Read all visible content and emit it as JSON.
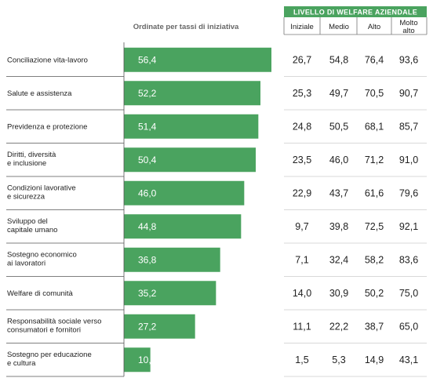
{
  "chart_data": {
    "type": "bar",
    "subtitle": "Ordinate per tassi di iniziativa",
    "group_title": "LIVELLO DI WELFARE AZIENDALE",
    "columns": [
      "Iniziale",
      "Medio",
      "Alto",
      "Molto alto"
    ],
    "categories": [
      [
        "Conciliazione vita-lavoro"
      ],
      [
        "Salute e assistenza"
      ],
      [
        "Previdenza e protezione"
      ],
      [
        "Diritti, diversità",
        "e inclusione"
      ],
      [
        "Condizioni lavorative",
        "e sicurezza"
      ],
      [
        "Sviluppo del",
        "capitale umano"
      ],
      [
        "Sostegno economico",
        "ai lavoratori"
      ],
      [
        "Welfare di comunità"
      ],
      [
        "Responsabilità sociale verso",
        "consumatori e fornitori"
      ],
      [
        "Sostegno per educazione",
        "e cultura"
      ]
    ],
    "values": [
      56.4,
      52.2,
      51.4,
      50.4,
      46.0,
      44.8,
      36.8,
      35.2,
      27.2,
      10.1
    ],
    "value_labels": [
      "56,4",
      "52,2",
      "51,4",
      "50,4",
      "46,0",
      "44,8",
      "36,8",
      "35,2",
      "27,2",
      "10,1"
    ],
    "table": [
      [
        "26,7",
        "54,8",
        "76,4",
        "93,6"
      ],
      [
        "25,3",
        "49,7",
        "70,5",
        "90,7"
      ],
      [
        "24,8",
        "50,5",
        "68,1",
        "85,7"
      ],
      [
        "23,5",
        "46,0",
        "71,2",
        "91,0"
      ],
      [
        "22,9",
        "43,7",
        "61,6",
        "79,6"
      ],
      [
        "9,7",
        "39,8",
        "72,5",
        "92,1"
      ],
      [
        "7,1",
        "32,4",
        "58,2",
        "83,6"
      ],
      [
        "14,0",
        "30,9",
        "50,2",
        "75,0"
      ],
      [
        "11,1",
        "22,2",
        "38,7",
        "65,0"
      ],
      [
        "1,5",
        "5,3",
        "14,9",
        "43,1"
      ]
    ],
    "xlim": [
      0,
      60
    ],
    "colors": {
      "bar": "#4aa35f",
      "header": "#4aa35f",
      "rule": "#555555",
      "grid": "#cccccc"
    }
  }
}
